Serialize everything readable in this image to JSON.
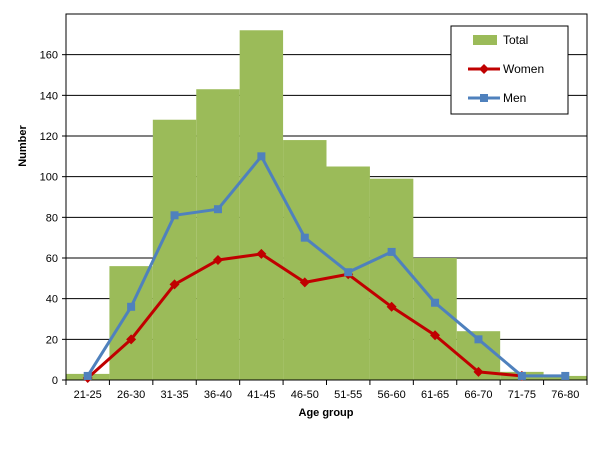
{
  "chart_data": {
    "type": "bar",
    "xlabel": "Age group",
    "ylabel": "Number",
    "ylim": [
      0,
      180
    ],
    "yticks": [
      0,
      20,
      40,
      60,
      80,
      100,
      120,
      140,
      160
    ],
    "grid": true,
    "legend_position": "top-right",
    "categories": [
      "21-25",
      "26-30",
      "31-35",
      "36-40",
      "41-45",
      "46-50",
      "51-55",
      "56-60",
      "61-65",
      "66-70",
      "71-75",
      "76-80"
    ],
    "series": [
      {
        "name": "Total",
        "kind": "bar",
        "color": "#9bbb59",
        "values": [
          3,
          56,
          128,
          143,
          172,
          118,
          105,
          99,
          60,
          24,
          4,
          2
        ]
      },
      {
        "name": "Women",
        "kind": "line",
        "marker": "diamond",
        "color": "#c00000",
        "values": [
          1,
          20,
          47,
          59,
          62,
          48,
          52,
          36,
          22,
          4,
          2,
          null
        ]
      },
      {
        "name": "Men",
        "kind": "line",
        "marker": "square",
        "color": "#4f81bd",
        "values": [
          2,
          36,
          81,
          84,
          110,
          70,
          53,
          63,
          38,
          20,
          2,
          2
        ]
      }
    ]
  }
}
